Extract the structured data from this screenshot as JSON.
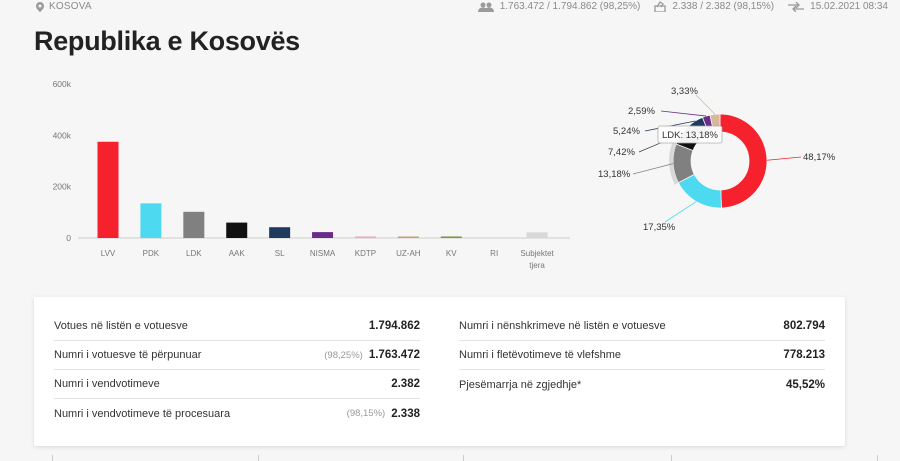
{
  "header": {
    "location": "KOSOVA",
    "voters_stat": "1.763.472 / 1.794.862 (98,25%)",
    "stations_stat": "2.338 / 2.382 (98,15%)",
    "updated": "15.02.2021 08:34"
  },
  "title": "Republika e Kosovës",
  "chart_data": [
    {
      "type": "bar",
      "categories": [
        "LVV",
        "PDK",
        "LDK",
        "AAK",
        "SL",
        "NISMA",
        "KDTP",
        "UZ-AH",
        "KV",
        "RI",
        "Subjektet tjera"
      ],
      "values": [
        375000,
        135000,
        102000,
        60000,
        42000,
        23000,
        6000,
        6000,
        6000,
        3000,
        22000
      ],
      "colors": [
        "#f5222d",
        "#4dd9f0",
        "#808080",
        "#111111",
        "#1e3a5f",
        "#6a2c8a",
        "#f4a6b6",
        "#c8a074",
        "#7a9a3a",
        "#f0d8b0",
        "#d8d8d8"
      ],
      "yticks": [
        "0",
        "200k",
        "400k",
        "600k"
      ],
      "ylim": [
        0,
        600000
      ]
    },
    {
      "type": "pie",
      "labels": [
        "",
        "",
        "",
        "",
        "",
        "",
        ""
      ],
      "values": [
        48.17,
        17.35,
        13.18,
        7.42,
        5.24,
        2.59,
        3.33
      ],
      "slice_colors": [
        "#f5222d",
        "#4dd9f0",
        "#808080",
        "#111111",
        "#1e3a5f",
        "#6a2c8a",
        "#d8b89a"
      ],
      "value_labels": [
        "48,17%",
        "17,35%",
        "13,18%",
        "7,42%",
        "5,24%",
        "2,59%",
        "3,33%"
      ],
      "tooltip": "LDK: 13,18%"
    }
  ],
  "stats_left": [
    {
      "label": "Votues në listën e votuesve",
      "pct": "",
      "value": "1.794.862"
    },
    {
      "label": "Numri i votuesve të përpunuar",
      "pct": "(98,25%)",
      "value": "1.763.472"
    },
    {
      "label": "Numri i vendvotimeve",
      "pct": "",
      "value": "2.382"
    },
    {
      "label": "Numri i vendvotimeve të procesuara",
      "pct": "(98,15%)",
      "value": "2.338"
    }
  ],
  "stats_right": [
    {
      "label": "Numri i nënshkrimeve në listën e votuesve",
      "pct": "",
      "value": "802.794"
    },
    {
      "label": "Numri i fletëvotimeve të vlefshme",
      "pct": "",
      "value": "778.213"
    },
    {
      "label": "Pjesëmarrja në zgjedhje*",
      "pct": "",
      "value": "45,52%"
    }
  ],
  "icons": {
    "location": "map-pin-icon",
    "voters": "people-icon",
    "stations": "ballot-box-icon",
    "updated": "refresh-arrows-icon"
  }
}
